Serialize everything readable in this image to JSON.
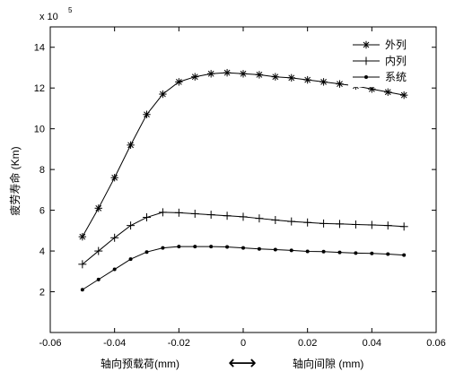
{
  "chart_data": {
    "type": "line",
    "x": [
      -0.05,
      -0.045,
      -0.04,
      -0.035,
      -0.03,
      -0.025,
      -0.02,
      -0.015,
      -0.01,
      -0.005,
      0.0,
      0.005,
      0.01,
      0.015,
      0.02,
      0.025,
      0.03,
      0.035,
      0.04,
      0.045,
      0.05
    ],
    "series": [
      {
        "name": "外列",
        "marker": "asterisk",
        "values": [
          4.7,
          6.1,
          7.6,
          9.2,
          10.7,
          11.7,
          12.3,
          12.55,
          12.7,
          12.75,
          12.7,
          12.65,
          12.55,
          12.5,
          12.4,
          12.3,
          12.2,
          12.1,
          11.95,
          11.8,
          11.65
        ]
      },
      {
        "name": "内列",
        "marker": "plus",
        "values": [
          3.35,
          4.0,
          4.65,
          5.25,
          5.65,
          5.9,
          5.88,
          5.83,
          5.78,
          5.73,
          5.68,
          5.6,
          5.52,
          5.45,
          5.4,
          5.35,
          5.33,
          5.3,
          5.28,
          5.25,
          5.2
        ]
      },
      {
        "name": "系统",
        "marker": "dot",
        "values": [
          2.1,
          2.6,
          3.1,
          3.6,
          3.95,
          4.15,
          4.22,
          4.22,
          4.22,
          4.2,
          4.15,
          4.1,
          4.07,
          4.03,
          3.98,
          3.97,
          3.93,
          3.9,
          3.88,
          3.85,
          3.8
        ]
      }
    ],
    "xlim": [
      -0.06,
      0.06
    ],
    "ylim": [
      0,
      15
    ],
    "xticks": [
      -0.06,
      -0.04,
      -0.02,
      0,
      0.02,
      0.04,
      0.06
    ],
    "xtick_labels": [
      "-0.06",
      "-0.04",
      "-0.02",
      "0",
      "0.02",
      "0.04",
      "0.06"
    ],
    "yticks": [
      2,
      4,
      6,
      8,
      10,
      12,
      14
    ],
    "ytick_labels": [
      "2",
      "4",
      "6",
      "8",
      "10",
      "12",
      "14"
    ],
    "y_multiplier_base": "x 10",
    "y_multiplier_exp": "5",
    "ylabel": "疲劳寿命 (Km)",
    "xlabel_left": "轴向预载荷(mm)",
    "xlabel_right": "轴向间隙 (mm)",
    "xlabel_arrow": "⟷",
    "legend_position": "top-right",
    "grid": false,
    "line_color": "#000000"
  }
}
